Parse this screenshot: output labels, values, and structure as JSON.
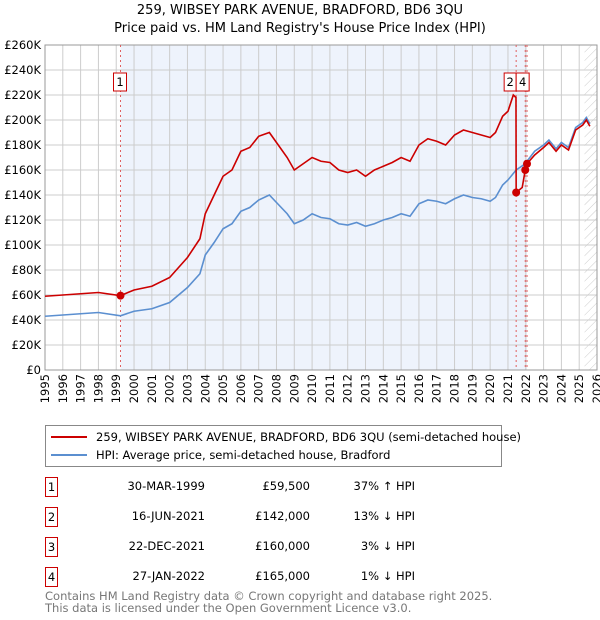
{
  "chart_data": {
    "type": "line",
    "title": "259, WIBSEY PARK AVENUE, BRADFORD, BD6 3QU",
    "subtitle": "Price paid vs. HM Land Registry's House Price Index (HPI)",
    "xlim": [
      1995,
      2026
    ],
    "ylim": [
      0,
      260000
    ],
    "y_ticks": [
      "£0",
      "£20K",
      "£40K",
      "£60K",
      "£80K",
      "£100K",
      "£120K",
      "£140K",
      "£160K",
      "£180K",
      "£200K",
      "£220K",
      "£240K",
      "£260K"
    ],
    "x_ticks": [
      "1995",
      "1996",
      "1997",
      "1998",
      "1999",
      "2000",
      "2001",
      "2002",
      "2003",
      "2004",
      "2005",
      "2006",
      "2007",
      "2008",
      "2009",
      "2010",
      "2011",
      "2012",
      "2013",
      "2014",
      "2015",
      "2016",
      "2017",
      "2018",
      "2019",
      "2020",
      "2021",
      "2022",
      "2023",
      "2024",
      "2025",
      "2026"
    ],
    "grid": true,
    "series": [
      {
        "name": "259, WIBSEY PARK AVENUE, BRADFORD, BD6 3QU (semi-detached house)",
        "color": "#cc0000",
        "points": [
          [
            1995,
            59000
          ],
          [
            1996,
            60000
          ],
          [
            1997,
            61000
          ],
          [
            1998,
            62000
          ],
          [
            1999.24,
            59500
          ],
          [
            2000,
            64000
          ],
          [
            2001,
            67000
          ],
          [
            2002,
            74000
          ],
          [
            2003,
            90000
          ],
          [
            2003.7,
            105000
          ],
          [
            2004,
            125000
          ],
          [
            2004.5,
            140000
          ],
          [
            2005,
            155000
          ],
          [
            2005.5,
            160000
          ],
          [
            2006,
            175000
          ],
          [
            2006.5,
            178000
          ],
          [
            2007,
            187000
          ],
          [
            2007.6,
            190000
          ],
          [
            2008,
            182000
          ],
          [
            2008.6,
            170000
          ],
          [
            2009,
            160000
          ],
          [
            2009.5,
            165000
          ],
          [
            2010,
            170000
          ],
          [
            2010.5,
            167000
          ],
          [
            2011,
            166000
          ],
          [
            2011.5,
            160000
          ],
          [
            2012,
            158000
          ],
          [
            2012.5,
            160000
          ],
          [
            2013,
            155000
          ],
          [
            2013.5,
            160000
          ],
          [
            2014,
            163000
          ],
          [
            2014.5,
            166000
          ],
          [
            2015,
            170000
          ],
          [
            2015.5,
            167000
          ],
          [
            2016,
            180000
          ],
          [
            2016.5,
            185000
          ],
          [
            2017,
            183000
          ],
          [
            2017.5,
            180000
          ],
          [
            2018,
            188000
          ],
          [
            2018.5,
            192000
          ],
          [
            2019,
            190000
          ],
          [
            2019.5,
            188000
          ],
          [
            2020,
            186000
          ],
          [
            2020.3,
            190000
          ],
          [
            2020.7,
            203000
          ],
          [
            2021,
            207000
          ],
          [
            2021.3,
            220000
          ],
          [
            2021.45,
            218000
          ],
          [
            2021.46,
            142000
          ],
          [
            2021.8,
            146000
          ],
          [
            2021.97,
            160000
          ],
          [
            2022.07,
            165000
          ],
          [
            2022.5,
            172000
          ],
          [
            2023,
            178000
          ],
          [
            2023.3,
            182000
          ],
          [
            2023.7,
            175000
          ],
          [
            2024,
            180000
          ],
          [
            2024.4,
            176000
          ],
          [
            2024.8,
            192000
          ],
          [
            2025.2,
            196000
          ],
          [
            2025.4,
            200000
          ],
          [
            2025.6,
            195000
          ]
        ]
      },
      {
        "name": "HPI: Average price, semi-detached house, Bradford",
        "color": "#5b8fd0",
        "points": [
          [
            1995,
            43000
          ],
          [
            1996,
            44000
          ],
          [
            1997,
            45000
          ],
          [
            1998,
            46000
          ],
          [
            1999.24,
            43400
          ],
          [
            2000,
            47000
          ],
          [
            2001,
            49000
          ],
          [
            2002,
            54000
          ],
          [
            2003,
            66000
          ],
          [
            2003.7,
            77000
          ],
          [
            2004,
            92000
          ],
          [
            2004.5,
            102000
          ],
          [
            2005,
            113000
          ],
          [
            2005.5,
            117000
          ],
          [
            2006,
            127000
          ],
          [
            2006.5,
            130000
          ],
          [
            2007,
            136000
          ],
          [
            2007.6,
            140000
          ],
          [
            2008,
            134000
          ],
          [
            2008.6,
            125000
          ],
          [
            2009,
            117000
          ],
          [
            2009.5,
            120000
          ],
          [
            2010,
            125000
          ],
          [
            2010.5,
            122000
          ],
          [
            2011,
            121000
          ],
          [
            2011.5,
            117000
          ],
          [
            2012,
            116000
          ],
          [
            2012.5,
            118000
          ],
          [
            2013,
            115000
          ],
          [
            2013.5,
            117000
          ],
          [
            2014,
            120000
          ],
          [
            2014.5,
            122000
          ],
          [
            2015,
            125000
          ],
          [
            2015.5,
            123000
          ],
          [
            2016,
            133000
          ],
          [
            2016.5,
            136000
          ],
          [
            2017,
            135000
          ],
          [
            2017.5,
            133000
          ],
          [
            2018,
            137000
          ],
          [
            2018.5,
            140000
          ],
          [
            2019,
            138000
          ],
          [
            2019.5,
            137000
          ],
          [
            2020,
            135000
          ],
          [
            2020.3,
            138000
          ],
          [
            2020.7,
            148000
          ],
          [
            2021,
            152000
          ],
          [
            2021.46,
            160000
          ],
          [
            2021.97,
            165000
          ],
          [
            2022.07,
            167000
          ],
          [
            2022.5,
            175000
          ],
          [
            2023,
            180000
          ],
          [
            2023.3,
            184000
          ],
          [
            2023.7,
            177000
          ],
          [
            2024,
            182000
          ],
          [
            2024.4,
            178000
          ],
          [
            2024.8,
            194000
          ],
          [
            2025.2,
            198000
          ],
          [
            2025.4,
            202000
          ],
          [
            2025.6,
            197000
          ]
        ]
      }
    ],
    "sales": [
      {
        "label": "1",
        "x": 1999.24,
        "price": 59500
      },
      {
        "label": "2",
        "x": 2021.46,
        "price": 142000
      },
      {
        "label": "3",
        "x": 2021.97,
        "price": 160000
      },
      {
        "label": "4",
        "x": 2022.07,
        "price": 165000
      }
    ],
    "legend_position": "below"
  },
  "transactions": [
    {
      "num": "1",
      "date": "30-MAR-1999",
      "price": "£59,500",
      "hpi": "37% ↑ HPI"
    },
    {
      "num": "2",
      "date": "16-JUN-2021",
      "price": "£142,000",
      "hpi": "13% ↓ HPI"
    },
    {
      "num": "3",
      "date": "22-DEC-2021",
      "price": "£160,000",
      "hpi": "3% ↓ HPI"
    },
    {
      "num": "4",
      "date": "27-JAN-2022",
      "price": "£165,000",
      "hpi": "1% ↓ HPI"
    }
  ],
  "footer": {
    "line1": "Contains HM Land Registry data © Crown copyright and database right 2025.",
    "line2": "This data is licensed under the Open Government Licence v3.0."
  }
}
